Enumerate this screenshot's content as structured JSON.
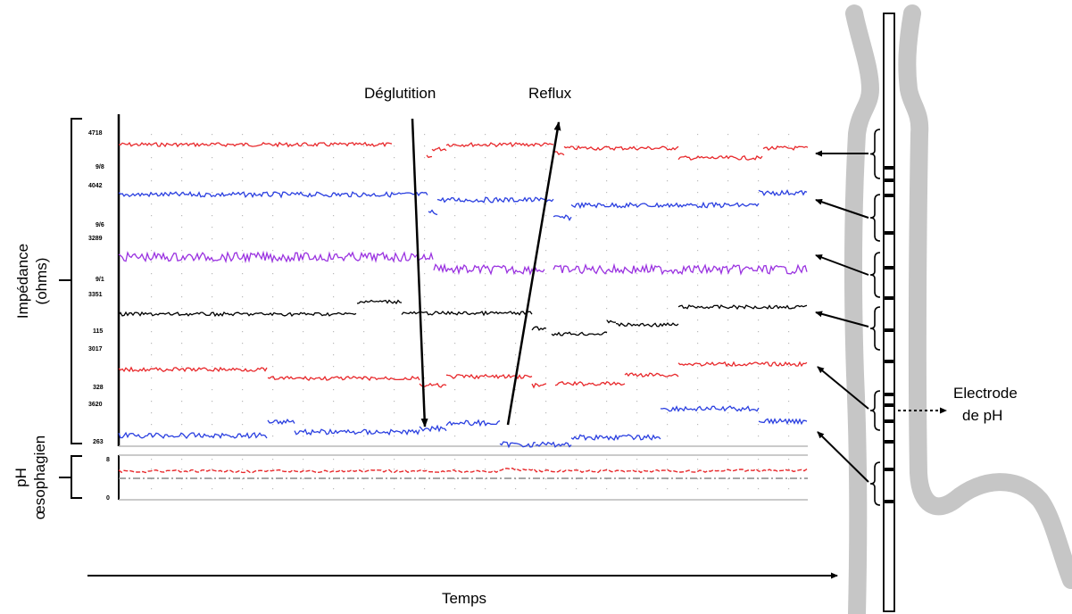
{
  "annotations": {
    "swallow": "Déglutition",
    "reflux": "Reflux",
    "electrode_line1": "Electrode",
    "electrode_line2": "de pH",
    "time_axis": "Temps"
  },
  "axes": {
    "impedance_line1": "Impédance",
    "impedance_line2": "(ohms)",
    "ph_line1": "pH",
    "ph_line2": "œsophagien"
  },
  "channels": [
    {
      "color": "#e8282b",
      "top_label": "4718",
      "bottom_label": "9/8"
    },
    {
      "color": "#2a3fe0",
      "top_label": "4042",
      "bottom_label": "9/6"
    },
    {
      "color": "#9a32e0",
      "top_label": "3289",
      "bottom_label": "9/1"
    },
    {
      "color": "#000000",
      "top_label": "3351",
      "bottom_label": "115"
    },
    {
      "color": "#e8282b",
      "top_label": "3017",
      "bottom_label": "328"
    },
    {
      "color": "#2a3fe0",
      "top_label": "3620",
      "bottom_label": "263"
    }
  ],
  "ph_trace": {
    "color": "#e8282b",
    "reference_color": "#8a8a8a",
    "top_label": "8",
    "bottom_label": "0"
  },
  "colors": {
    "esophagus": "#c6c6c6",
    "grid": "#b9b9b9"
  }
}
